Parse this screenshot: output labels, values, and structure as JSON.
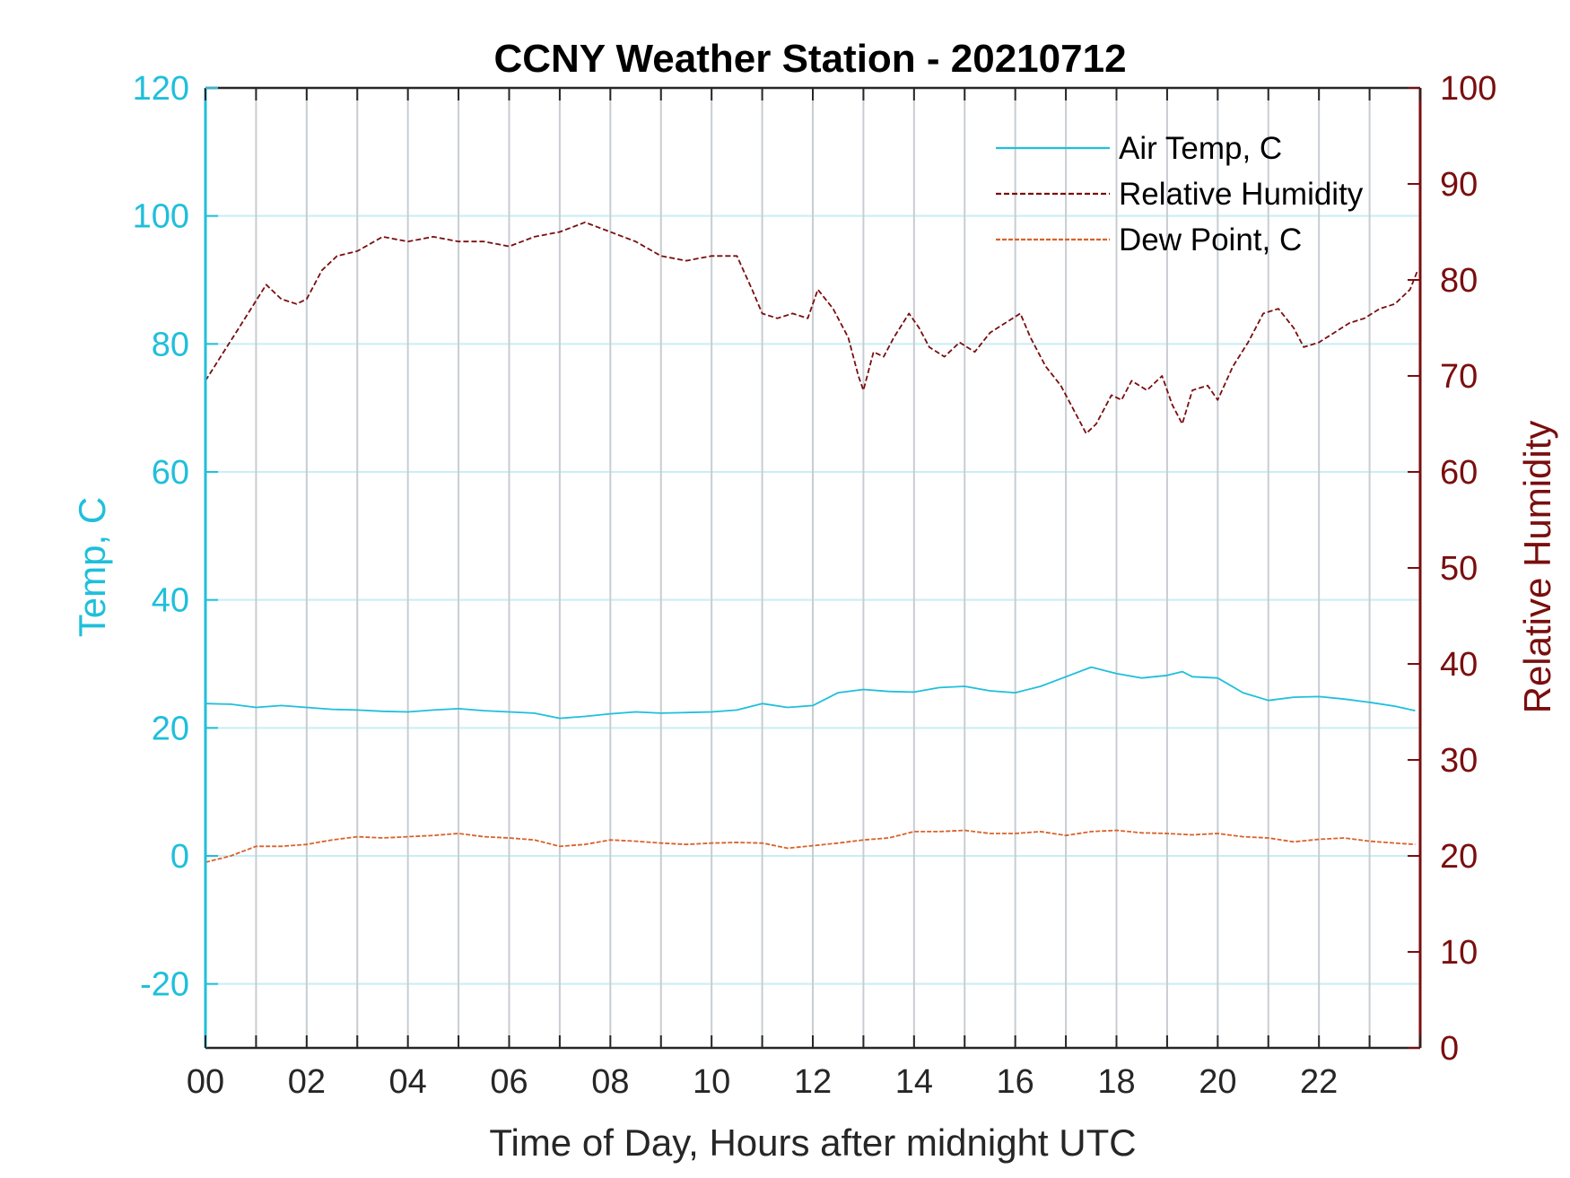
{
  "chart_data": {
    "type": "line",
    "title": "CCNY Weather Station - 20210712",
    "xlabel": "Time of Day, Hours after midnight UTC",
    "ylabel_left": "Temp, C",
    "ylabel_right": "Relative Humidity",
    "xlim": [
      0,
      24
    ],
    "ylim_left": [
      -30,
      120
    ],
    "ylim_right": [
      0,
      100
    ],
    "x_ticks": [
      0,
      2,
      4,
      6,
      8,
      10,
      12,
      14,
      16,
      18,
      20,
      22
    ],
    "x_tick_labels": [
      "00",
      "02",
      "04",
      "06",
      "08",
      "10",
      "12",
      "14",
      "16",
      "18",
      "20",
      "22"
    ],
    "x_minor_gridlines_every_hours": 1,
    "y_ticks_left": [
      -20,
      0,
      20,
      40,
      60,
      80,
      100,
      120
    ],
    "y_ticks_right": [
      0,
      10,
      20,
      30,
      40,
      50,
      60,
      70,
      80,
      90,
      100
    ],
    "grid": true,
    "legend_position": "top-right",
    "colors": {
      "left_axis": "#1fbfdc",
      "right_axis": "#7a0e0e",
      "air_temp": "#1fbfdc",
      "relative_humidity": "#7a0e0e",
      "dew_point": "#d9622b",
      "vertical_grid": "#c8cdd2",
      "horizontal_grid": "#c8eef5"
    },
    "series": [
      {
        "name": "Air Temp, C",
        "axis": "left",
        "style": "solid",
        "x": [
          0,
          0.5,
          1,
          1.5,
          2,
          2.5,
          3,
          3.5,
          4,
          4.5,
          5,
          5.5,
          6,
          6.5,
          7,
          7.5,
          8,
          8.5,
          9,
          9.5,
          10,
          10.5,
          11,
          11.5,
          12,
          12.5,
          13,
          13.5,
          14,
          14.5,
          15,
          15.5,
          16,
          16.5,
          17,
          17.5,
          18,
          18.5,
          19,
          19.3,
          19.5,
          20,
          20.5,
          21,
          21.5,
          22,
          22.5,
          23,
          23.5,
          23.9
        ],
        "y": [
          23.8,
          23.7,
          23.2,
          23.5,
          23.2,
          22.9,
          22.8,
          22.6,
          22.5,
          22.8,
          23.0,
          22.7,
          22.5,
          22.3,
          21.5,
          21.8,
          22.2,
          22.5,
          22.3,
          22.4,
          22.5,
          22.8,
          23.8,
          23.2,
          23.5,
          25.5,
          26.0,
          25.7,
          25.6,
          26.3,
          26.5,
          25.8,
          25.5,
          26.5,
          28.0,
          29.5,
          28.5,
          27.8,
          28.2,
          28.8,
          28.0,
          27.8,
          25.5,
          24.3,
          24.8,
          24.9,
          24.5,
          24.0,
          23.4,
          22.7
        ]
      },
      {
        "name": "Relative Humidity",
        "axis": "right",
        "style": "dashed",
        "x": [
          0,
          0.3,
          0.6,
          0.9,
          1.2,
          1.5,
          1.8,
          2.0,
          2.3,
          2.6,
          3.0,
          3.5,
          4.0,
          4.5,
          5.0,
          5.5,
          6.0,
          6.5,
          7.0,
          7.5,
          8.0,
          8.5,
          9.0,
          9.5,
          10.0,
          10.5,
          10.8,
          11.0,
          11.3,
          11.6,
          11.9,
          12.1,
          12.4,
          12.7,
          12.9,
          13.0,
          13.2,
          13.4,
          13.6,
          13.9,
          14.1,
          14.3,
          14.6,
          14.9,
          15.2,
          15.5,
          15.8,
          16.1,
          16.3,
          16.6,
          16.9,
          17.2,
          17.4,
          17.6,
          17.9,
          18.1,
          18.3,
          18.6,
          18.9,
          19.1,
          19.3,
          19.5,
          19.8,
          20.0,
          20.3,
          20.6,
          20.9,
          21.2,
          21.5,
          21.7,
          22.0,
          22.3,
          22.6,
          22.9,
          23.2,
          23.5,
          23.8,
          23.95
        ],
        "y": [
          69.5,
          72.0,
          74.5,
          77.0,
          79.5,
          78.0,
          77.5,
          78.0,
          81.0,
          82.5,
          83.0,
          84.5,
          84.0,
          84.5,
          84.0,
          84.0,
          83.5,
          84.5,
          85.0,
          86.0,
          85.0,
          84.0,
          82.5,
          82.0,
          82.5,
          82.5,
          79.0,
          76.5,
          76.0,
          76.5,
          76.0,
          79.0,
          77.0,
          74.0,
          70.0,
          68.5,
          72.5,
          72.0,
          74.0,
          76.5,
          75.0,
          73.0,
          72.0,
          73.5,
          72.5,
          74.5,
          75.5,
          76.5,
          74.0,
          71.0,
          69.0,
          66.0,
          64.0,
          65.0,
          68.0,
          67.5,
          69.5,
          68.5,
          70.0,
          67.0,
          65.0,
          68.5,
          69.0,
          67.5,
          71.0,
          73.5,
          76.5,
          77.0,
          75.0,
          73.0,
          73.5,
          74.5,
          75.5,
          76.0,
          77.0,
          77.5,
          79.0,
          81.0
        ]
      },
      {
        "name": "Dew Point, C",
        "axis": "left",
        "style": "dashed",
        "x": [
          0,
          0.5,
          1,
          1.5,
          2,
          2.5,
          3,
          3.5,
          4,
          4.5,
          5,
          5.5,
          6,
          6.5,
          7,
          7.5,
          8,
          8.5,
          9,
          9.5,
          10,
          10.5,
          11,
          11.5,
          12,
          12.5,
          13,
          13.5,
          14,
          14.5,
          15,
          15.5,
          16,
          16.5,
          17,
          17.5,
          18,
          18.5,
          19,
          19.5,
          20,
          20.5,
          21,
          21.5,
          22,
          22.5,
          23,
          23.5,
          23.9
        ],
        "y": [
          -1.0,
          0.0,
          1.5,
          1.5,
          1.8,
          2.5,
          3.0,
          2.8,
          3.0,
          3.2,
          3.5,
          3.0,
          2.8,
          2.5,
          1.5,
          1.8,
          2.5,
          2.3,
          2.0,
          1.8,
          2.0,
          2.1,
          2.0,
          1.2,
          1.6,
          2.0,
          2.5,
          2.8,
          3.8,
          3.8,
          4.0,
          3.5,
          3.5,
          3.8,
          3.2,
          3.8,
          4.0,
          3.6,
          3.5,
          3.3,
          3.5,
          3.0,
          2.8,
          2.2,
          2.6,
          2.8,
          2.3,
          2.0,
          1.8
        ]
      }
    ]
  }
}
